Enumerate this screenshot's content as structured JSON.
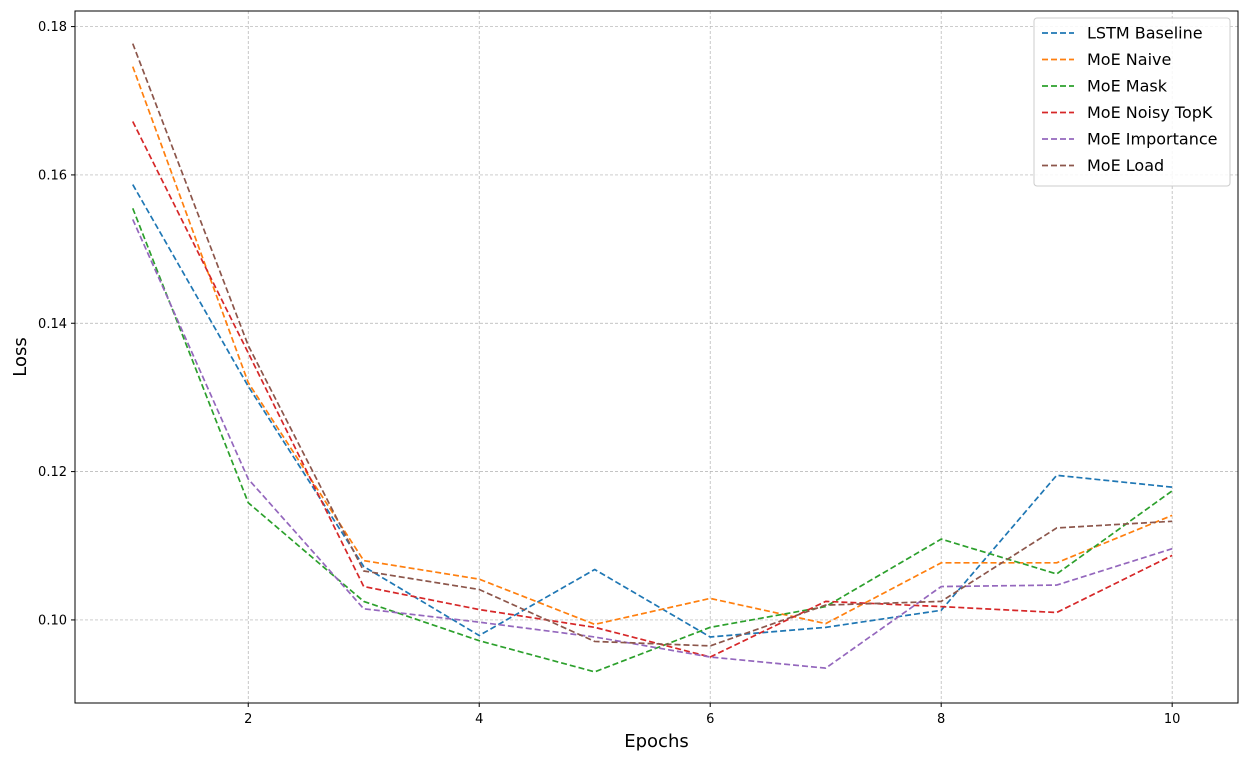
{
  "chart_data": {
    "type": "line",
    "title": "",
    "xlabel": "Epochs",
    "ylabel": "Loss",
    "xlim": [
      0.5,
      10.57
    ],
    "ylim": [
      0.0888,
      0.1821
    ],
    "x_ticks": [
      2,
      4,
      6,
      8,
      10
    ],
    "x_tick_labels": [
      "2",
      "4",
      "6",
      "8",
      "10"
    ],
    "y_ticks": [
      0.1,
      0.12,
      0.14,
      0.16,
      0.18
    ],
    "y_tick_labels": [
      "0.10",
      "0.12",
      "0.14",
      "0.16",
      "0.18"
    ],
    "grid": true,
    "line_style": "dashed",
    "legend_position": "top-right",
    "x": [
      1,
      2,
      3,
      4,
      5,
      6,
      7,
      8,
      9,
      10
    ],
    "series": [
      {
        "name": "LSTM Baseline",
        "color": "#1f77b4",
        "values": [
          0.1587,
          0.1315,
          0.1072,
          0.0979,
          0.1068,
          0.0977,
          0.099,
          0.1013,
          0.1195,
          0.1179
        ]
      },
      {
        "name": "MoE Naive",
        "color": "#ff7f0e",
        "values": [
          0.1746,
          0.132,
          0.108,
          0.1055,
          0.0994,
          0.1029,
          0.0995,
          0.1077,
          0.1077,
          0.1141
        ]
      },
      {
        "name": "MoE Mask",
        "color": "#2ca02c",
        "values": [
          0.1555,
          0.1158,
          0.1025,
          0.0972,
          0.093,
          0.099,
          0.1018,
          0.1109,
          0.1062,
          0.1174
        ]
      },
      {
        "name": "MoE Noisy TopK",
        "color": "#d62728",
        "values": [
          0.1672,
          0.136,
          0.1045,
          0.1014,
          0.099,
          0.095,
          0.1025,
          0.1018,
          0.101,
          0.1087
        ]
      },
      {
        "name": "MoE Importance",
        "color": "#9467bd",
        "values": [
          0.154,
          0.119,
          0.1015,
          0.0997,
          0.0977,
          0.095,
          0.0935,
          0.1045,
          0.1047,
          0.1096
        ]
      },
      {
        "name": "MoE Load",
        "color": "#8c564b",
        "values": [
          0.1777,
          0.137,
          0.1066,
          0.1041,
          0.0971,
          0.0965,
          0.102,
          0.1025,
          0.1124,
          0.1133
        ]
      }
    ]
  }
}
